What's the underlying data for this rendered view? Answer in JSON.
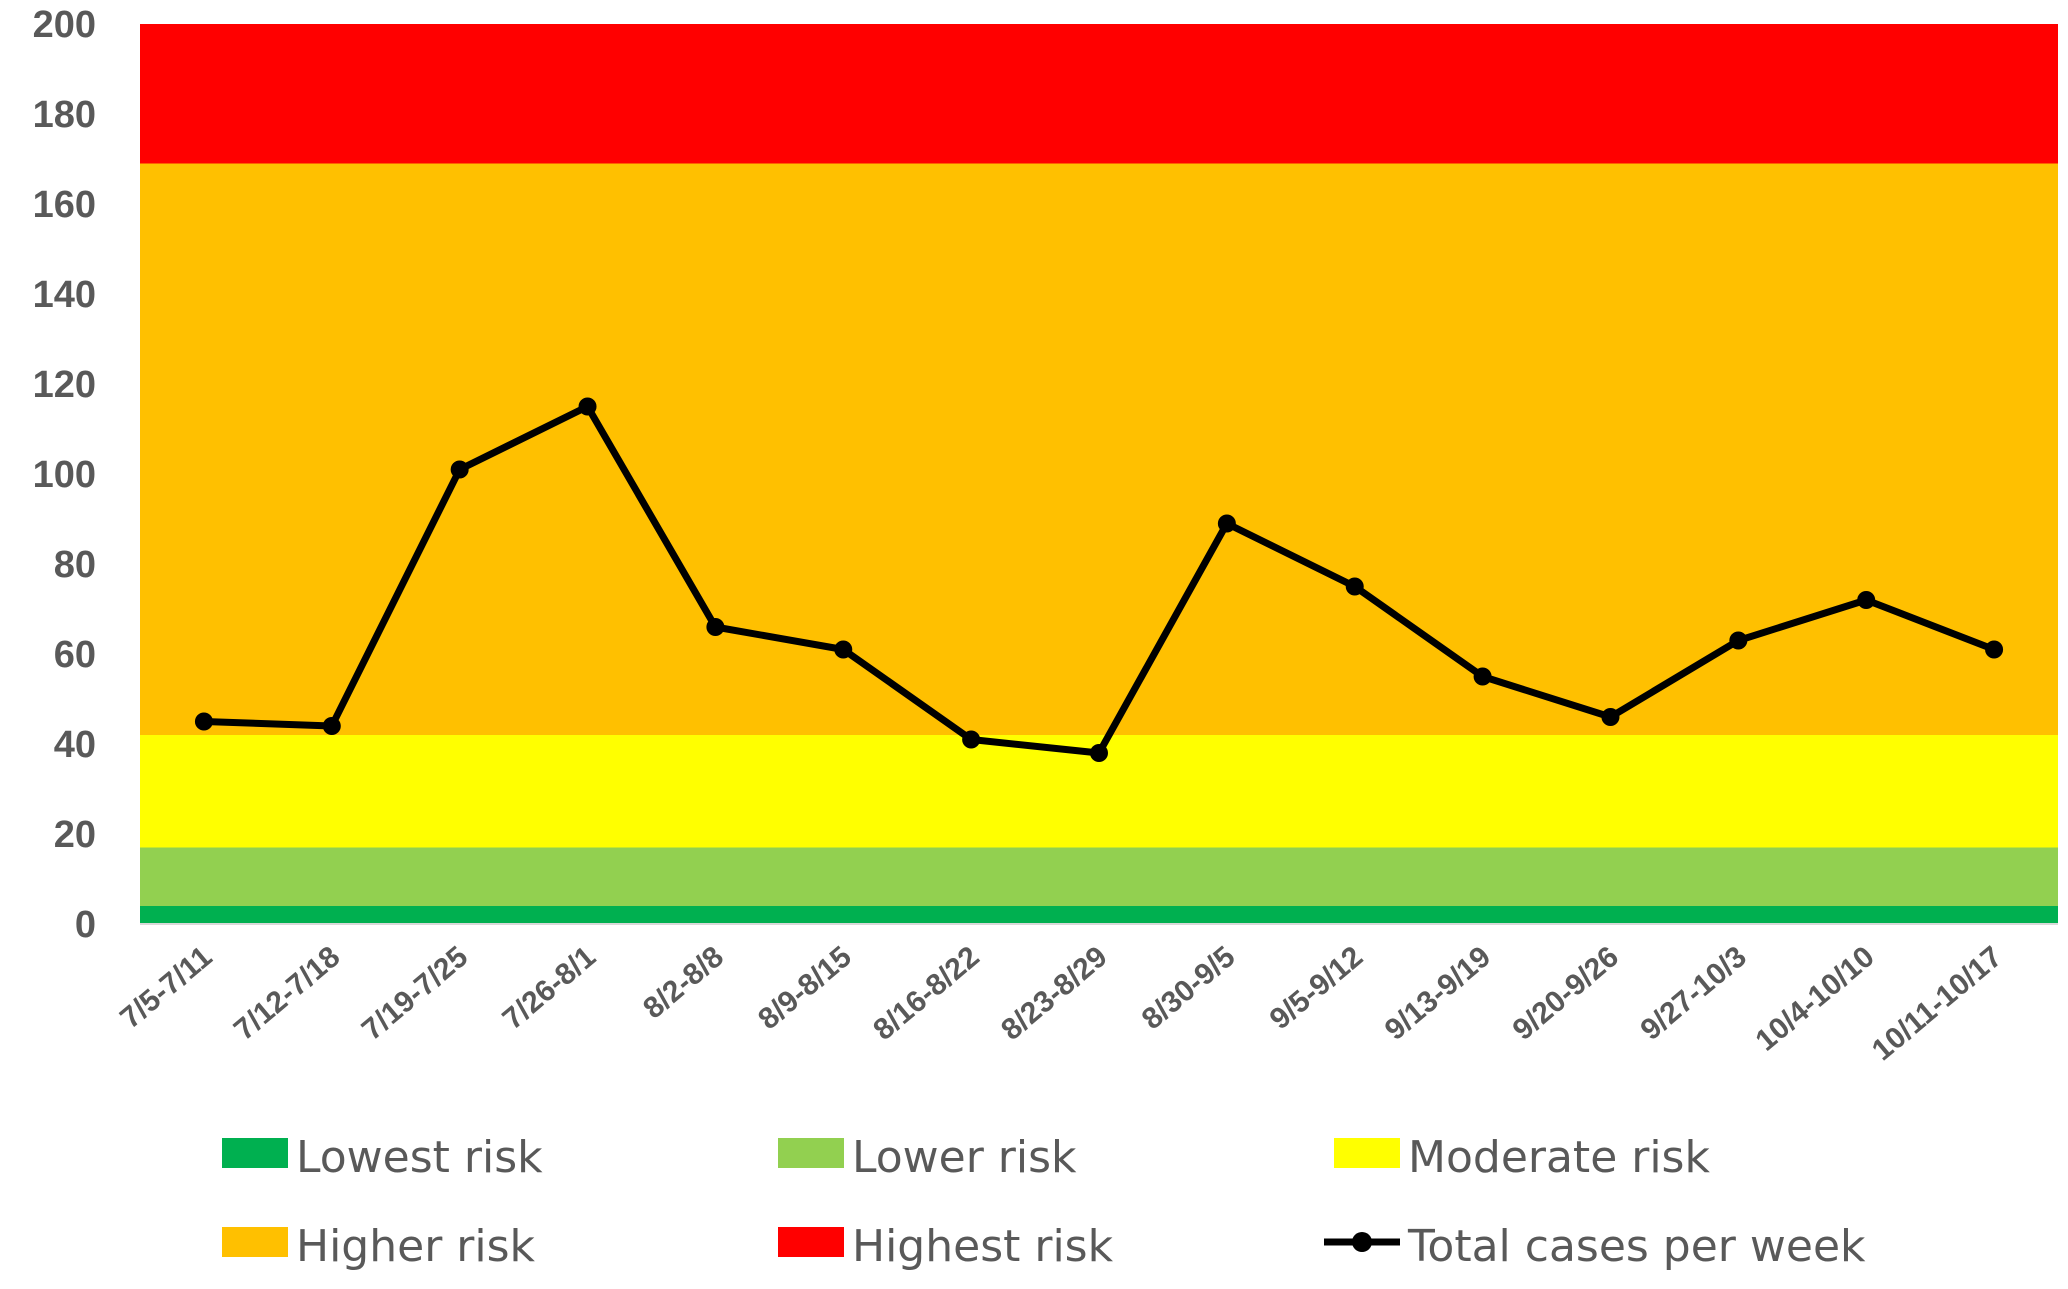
{
  "chart_data": {
    "type": "line",
    "title": "",
    "xlabel": "",
    "ylabel": "",
    "ylim": [
      0,
      200
    ],
    "yticks": [
      0,
      20,
      40,
      60,
      80,
      100,
      120,
      140,
      160,
      180,
      200
    ],
    "grid": false,
    "categories": [
      "7/5-7/11",
      "7/12-7/18",
      "7/19-7/25",
      "7/26-8/1",
      "8/2-8/8",
      "8/9-8/15",
      "8/16-8/22",
      "8/23-8/29",
      "8/30-9/5",
      "9/5-9/12",
      "9/13-9/19",
      "9/20-9/26",
      "9/27-10/3",
      "10/4-10/10",
      "10/11-10/17"
    ],
    "series": [
      {
        "name": "Total cases per week",
        "color": "#000000",
        "values": [
          45,
          44,
          101,
          115,
          66,
          61,
          41,
          38,
          89,
          75,
          55,
          46,
          63,
          72,
          61
        ]
      }
    ],
    "bands": [
      {
        "name": "Lowest risk",
        "from": 0,
        "to": 4,
        "color": "#00B050"
      },
      {
        "name": "Lower risk",
        "from": 4,
        "to": 17,
        "color": "#92D050"
      },
      {
        "name": "Moderate risk",
        "from": 17,
        "to": 42,
        "color": "#FFFF00"
      },
      {
        "name": "Higher risk",
        "from": 42,
        "to": 169,
        "color": "#FFC000"
      },
      {
        "name": "Highest risk",
        "from": 169,
        "to": 200,
        "color": "#FF0000"
      }
    ],
    "legend": {
      "placement": "bottom",
      "items": [
        {
          "label": "Lowest risk",
          "kind": "swatch",
          "color": "#00B050"
        },
        {
          "label": "Lower risk",
          "kind": "swatch",
          "color": "#92D050"
        },
        {
          "label": "Moderate risk",
          "kind": "swatch",
          "color": "#FFFF00"
        },
        {
          "label": "Higher risk",
          "kind": "swatch",
          "color": "#FFC000"
        },
        {
          "label": "Highest risk",
          "kind": "swatch",
          "color": "#FF0000"
        },
        {
          "label": "Total cases per week",
          "kind": "line",
          "color": "#000000"
        }
      ]
    }
  }
}
